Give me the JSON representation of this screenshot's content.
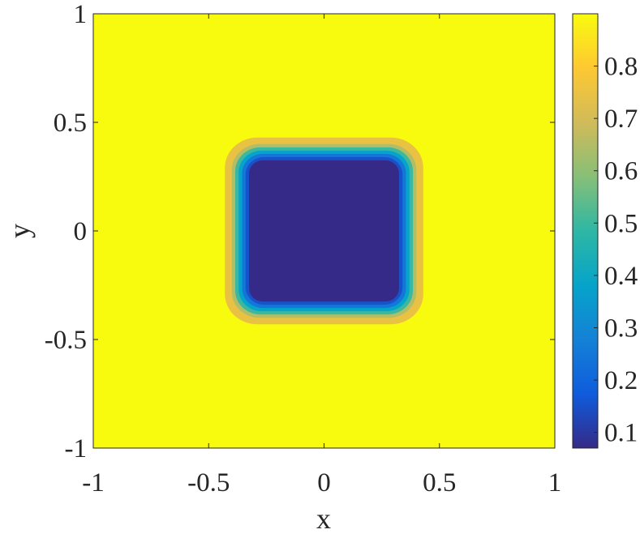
{
  "chart_data": {
    "type": "heatmap",
    "title": "",
    "xlabel": "x",
    "ylabel": "y",
    "xlim": [
      -1,
      1
    ],
    "ylim": [
      -1,
      1
    ],
    "x_ticks": [
      -1,
      -0.5,
      0,
      0.5,
      1
    ],
    "x_tick_labels": [
      "-1",
      "-0.5",
      "0",
      "0.5",
      "1"
    ],
    "y_ticks": [
      -1,
      -0.5,
      0,
      0.5,
      1
    ],
    "y_tick_labels": [
      "-1",
      "-0.5",
      "0",
      "0.5",
      "1"
    ],
    "grid": false,
    "colormap": "parula",
    "colorbar": {
      "limits": [
        0.07,
        0.9
      ],
      "ticks": [
        0.1,
        0.2,
        0.3,
        0.4,
        0.5,
        0.6,
        0.7,
        0.8
      ],
      "tick_labels": [
        "0.1",
        "0.2",
        "0.3",
        "0.4",
        "0.5",
        "0.6",
        "0.7",
        "0.8"
      ],
      "placement": "right"
    },
    "field": {
      "background_value": 0.9,
      "inner_value": 0.07,
      "description_values": [
        {
          "half_width": 0.43,
          "corner_radius": 0.14,
          "value": 0.75
        },
        {
          "half_width": 0.4,
          "corner_radius": 0.12,
          "value": 0.65
        },
        {
          "half_width": 0.385,
          "corner_radius": 0.11,
          "value": 0.5
        },
        {
          "half_width": 0.37,
          "corner_radius": 0.1,
          "value": 0.38
        },
        {
          "half_width": 0.355,
          "corner_radius": 0.09,
          "value": 0.25
        },
        {
          "half_width": 0.34,
          "corner_radius": 0.08,
          "value": 0.15
        },
        {
          "half_width": 0.325,
          "corner_radius": 0.06,
          "value": 0.07
        }
      ]
    },
    "colors": {
      "parula_stops": [
        "#352a87",
        "#0f5cdd",
        "#1481d6",
        "#06a4ca",
        "#2eb7a4",
        "#87bf77",
        "#d1bb59",
        "#fec832",
        "#f9fb0e"
      ]
    }
  }
}
